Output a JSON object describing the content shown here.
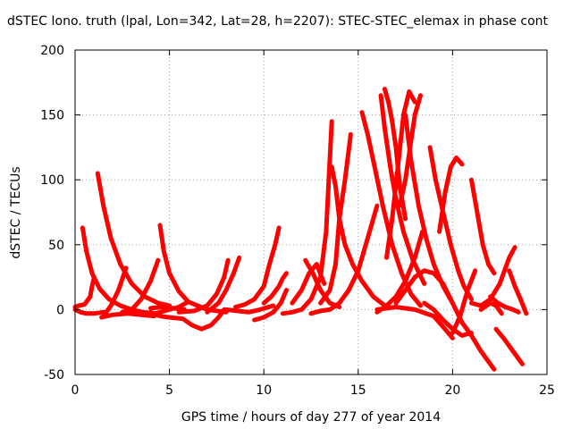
{
  "chart_data": {
    "type": "scatter",
    "title": "dSTEC Iono. truth (lpal, Lon=342, Lat=28, h=2207): STEC-STEC_elemax in phase cont",
    "xlabel": "GPS time / hours of day 277 of year 2014",
    "ylabel": "dSTEC  / TECUs",
    "xlim": [
      0,
      25
    ],
    "ylim": [
      -50,
      200
    ],
    "xticks": [
      0,
      5,
      10,
      15,
      20,
      25
    ],
    "yticks": [
      -50,
      0,
      50,
      100,
      150,
      200
    ],
    "grid": true,
    "marker": "+",
    "color": "#ff0000",
    "series": [
      {
        "x": [
          0.4,
          0.6,
          0.9,
          1.3,
          1.8,
          2.4,
          3.0,
          3.6,
          4.2
        ],
        "y": [
          63,
          45,
          28,
          16,
          8,
          3,
          0,
          -2,
          -3
        ]
      },
      {
        "x": [
          0.0,
          0.2,
          0.5,
          0.8,
          0.9,
          1.0
        ],
        "y": [
          2,
          3,
          4,
          10,
          18,
          24
        ]
      },
      {
        "x": [
          0.0,
          0.3,
          0.6,
          1.0,
          1.5
        ],
        "y": [
          0,
          -2,
          -3,
          -3,
          -2
        ]
      },
      {
        "x": [
          1.2,
          1.5,
          1.9,
          2.4,
          3.0,
          3.7,
          4.4,
          5.0
        ],
        "y": [
          105,
          80,
          55,
          35,
          20,
          10,
          5,
          3
        ]
      },
      {
        "x": [
          1.5,
          1.9,
          2.3,
          2.7
        ],
        "y": [
          -5,
          3,
          15,
          32
        ]
      },
      {
        "x": [
          1.4,
          2.0,
          2.8,
          3.5,
          4.2
        ],
        "y": [
          -6,
          -4,
          -3,
          -4,
          -5
        ]
      },
      {
        "x": [
          2.5,
          3.0,
          3.5,
          4.0,
          4.4
        ],
        "y": [
          -2,
          0,
          8,
          22,
          38
        ]
      },
      {
        "x": [
          4.5,
          4.7,
          5.0,
          5.5,
          6.0,
          7.0,
          8.0
        ],
        "y": [
          65,
          45,
          28,
          14,
          6,
          0,
          -2
        ]
      },
      {
        "x": [
          4.0,
          4.5,
          5.0,
          5.5,
          6.0
        ],
        "y": [
          -4,
          -2,
          0,
          2,
          6
        ]
      },
      {
        "x": [
          4.0,
          4.5,
          5.0,
          5.7
        ],
        "y": [
          -2,
          -5,
          -6,
          -7
        ]
      },
      {
        "x": [
          4.0,
          4.6,
          5.2,
          5.8
        ],
        "y": [
          1,
          2,
          1,
          0
        ]
      },
      {
        "x": [
          5.8,
          6.2,
          6.7,
          7.2,
          7.6,
          7.9
        ],
        "y": [
          -8,
          -12,
          -15,
          -12,
          -6,
          0
        ]
      },
      {
        "x": [
          5.5,
          6.3,
          7.0,
          7.5,
          7.9,
          8.1
        ],
        "y": [
          -2,
          -1,
          3,
          12,
          25,
          38
        ]
      },
      {
        "x": [
          7.0,
          7.6,
          8.0,
          8.4,
          8.7
        ],
        "y": [
          -2,
          5,
          15,
          28,
          40
        ]
      },
      {
        "x": [
          8.5,
          9.0,
          9.5,
          10.0,
          10.3,
          10.6,
          10.8
        ],
        "y": [
          2,
          4,
          8,
          18,
          35,
          50,
          63
        ]
      },
      {
        "x": [
          8.0,
          8.6,
          9.2,
          9.8,
          10.5
        ],
        "y": [
          0,
          -1,
          -2,
          0,
          3
        ]
      },
      {
        "x": [
          9.5,
          10.0,
          10.5,
          10.9,
          11.2
        ],
        "y": [
          -8,
          -6,
          -2,
          5,
          15
        ]
      },
      {
        "x": [
          10.0,
          10.4,
          10.8,
          11.0,
          11.2
        ],
        "y": [
          5,
          10,
          18,
          24,
          28
        ]
      },
      {
        "x": [
          11.0,
          11.5,
          12.0,
          12.5,
          13.0,
          13.3,
          13.6
        ],
        "y": [
          -3,
          -2,
          0,
          8,
          25,
          60,
          145
        ]
      },
      {
        "x": [
          12.2,
          12.6,
          13.0,
          13.5,
          14.0
        ],
        "y": [
          38,
          28,
          15,
          5,
          2
        ]
      },
      {
        "x": [
          11.5,
          12.0,
          12.4,
          12.8,
          13.2
        ],
        "y": [
          5,
          15,
          28,
          35,
          20
        ]
      },
      {
        "x": [
          13.0,
          13.5,
          13.8,
          14.0,
          14.3,
          14.6
        ],
        "y": [
          5,
          15,
          35,
          70,
          100,
          135
        ]
      },
      {
        "x": [
          13.6,
          13.8,
          14.0,
          14.3,
          14.7,
          15.2,
          15.8,
          16.5
        ],
        "y": [
          110,
          95,
          70,
          50,
          35,
          22,
          10,
          2
        ]
      },
      {
        "x": [
          12.5,
          13.0,
          13.5,
          14.0,
          14.5,
          15.0,
          15.5,
          16.0
        ],
        "y": [
          -3,
          -1,
          0,
          5,
          15,
          30,
          55,
          80
        ]
      },
      {
        "x": [
          15.2,
          15.5,
          15.9,
          16.3,
          16.8,
          17.3,
          17.8,
          18.3
        ],
        "y": [
          152,
          135,
          108,
          80,
          50,
          28,
          12,
          3
        ]
      },
      {
        "x": [
          16.2,
          16.4,
          16.7,
          17.0,
          17.4,
          17.9,
          18.5
        ],
        "y": [
          165,
          140,
          110,
          85,
          60,
          38,
          20
        ]
      },
      {
        "x": [
          16.4,
          16.6,
          16.8,
          17.0,
          17.2,
          17.5
        ],
        "y": [
          170,
          160,
          145,
          125,
          95,
          70
        ]
      },
      {
        "x": [
          16.5,
          16.8,
          17.1,
          17.4,
          17.7,
          18.0
        ],
        "y": [
          40,
          70,
          110,
          150,
          168,
          160
        ]
      },
      {
        "x": [
          17.2,
          17.5,
          17.8,
          18.0,
          18.3
        ],
        "y": [
          80,
          100,
          130,
          150,
          165
        ]
      },
      {
        "x": [
          17.5,
          17.8,
          18.2,
          18.6,
          19.0,
          19.5,
          20.0
        ],
        "y": [
          150,
          115,
          80,
          55,
          35,
          18,
          5
        ]
      },
      {
        "x": [
          16.0,
          16.5,
          17.0,
          17.5,
          18.0,
          18.4
        ],
        "y": [
          -2,
          3,
          10,
          22,
          40,
          60
        ]
      },
      {
        "x": [
          18.8,
          19.1,
          19.5,
          19.9,
          20.3,
          20.6,
          21.0
        ],
        "y": [
          125,
          100,
          75,
          50,
          30,
          18,
          8
        ]
      },
      {
        "x": [
          19.3,
          19.6,
          19.9,
          20.2,
          20.5
        ],
        "y": [
          60,
          90,
          110,
          117,
          112
        ]
      },
      {
        "x": [
          17.0,
          17.5,
          18.0,
          18.5,
          19.0,
          19.5,
          20.0,
          20.5
        ],
        "y": [
          5,
          15,
          25,
          30,
          28,
          20,
          5,
          -10
        ]
      },
      {
        "x": [
          16.0,
          17.0,
          18.0,
          19.0,
          19.6,
          20.0
        ],
        "y": [
          0,
          2,
          0,
          -5,
          -15,
          -22
        ]
      },
      {
        "x": [
          18.5,
          19.0,
          19.5,
          20.0,
          20.5,
          21.0
        ],
        "y": [
          5,
          0,
          -8,
          -15,
          -20,
          -18
        ]
      },
      {
        "x": [
          20.0,
          20.4,
          20.8,
          21.2
        ],
        "y": [
          -18,
          -5,
          15,
          30
        ]
      },
      {
        "x": [
          21.0,
          21.3,
          21.6,
          21.9,
          22.2
        ],
        "y": [
          100,
          75,
          50,
          35,
          28
        ]
      },
      {
        "x": [
          20.5,
          21.0,
          21.5,
          22.0,
          22.2
        ],
        "y": [
          -10,
          -20,
          -32,
          -42,
          -46
        ]
      },
      {
        "x": [
          21.0,
          21.5,
          22.0,
          22.5,
          23.0,
          23.3
        ],
        "y": [
          5,
          3,
          8,
          20,
          40,
          48
        ]
      },
      {
        "x": [
          22.0,
          22.4,
          22.8,
          23.2,
          23.5
        ],
        "y": [
          10,
          5,
          2,
          0,
          -2
        ]
      },
      {
        "x": [
          23.0,
          23.3,
          23.6,
          23.9
        ],
        "y": [
          30,
          18,
          8,
          -3
        ]
      },
      {
        "x": [
          22.3,
          22.7,
          23.1,
          23.5,
          23.7
        ],
        "y": [
          -15,
          -22,
          -30,
          -38,
          -42
        ]
      },
      {
        "x": [
          21.5,
          22.0,
          22.3,
          22.6
        ],
        "y": [
          0,
          5,
          3,
          -3
        ]
      }
    ]
  }
}
